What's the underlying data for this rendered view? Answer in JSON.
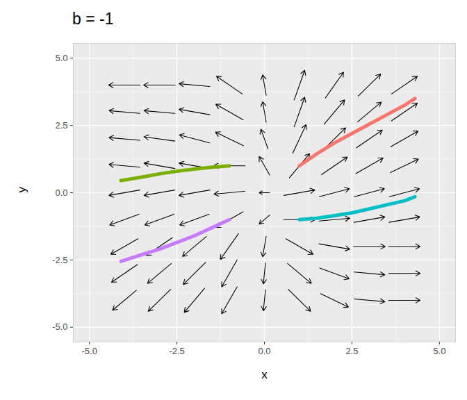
{
  "chart_data": {
    "type": "vector_field",
    "title": "b = -1",
    "x_label": "x",
    "y_label": "y",
    "xlim": [
      -5.46,
      5.46
    ],
    "ylim": [
      -5.55,
      5.55
    ],
    "xticks": [
      {
        "value": -5,
        "label": "-5.0"
      },
      {
        "value": -2.5,
        "label": "-2.5"
      },
      {
        "value": 0,
        "label": "0.0"
      },
      {
        "value": 2.5,
        "label": "2.5"
      },
      {
        "value": 5,
        "label": "5.0"
      }
    ],
    "yticks": [
      {
        "value": -5,
        "label": "-5.0"
      },
      {
        "value": -2.5,
        "label": "-2.5"
      },
      {
        "value": 0,
        "label": "0.0"
      },
      {
        "value": 2.5,
        "label": "2.5"
      },
      {
        "value": 5,
        "label": "5.0"
      }
    ],
    "grid": true,
    "arrows": [
      [
        -3.55,
        4,
        -4.45,
        4
      ],
      [
        -2.55,
        4,
        -3.45,
        4
      ],
      [
        -1.56,
        3.95,
        -2.44,
        4.05
      ],
      [
        -0.63,
        3.67,
        -1.37,
        4.33
      ],
      [
        0.05,
        3.62,
        -0.05,
        4.38
      ],
      [
        0.85,
        3.45,
        1.15,
        4.55
      ],
      [
        1.74,
        3.52,
        2.26,
        4.48
      ],
      [
        2.68,
        3.59,
        3.32,
        4.41
      ],
      [
        3.63,
        3.67,
        4.37,
        4.33
      ],
      [
        -3.56,
        2.95,
        -4.44,
        3.05
      ],
      [
        -2.56,
        2.95,
        -3.44,
        3.05
      ],
      [
        -1.56,
        2.9,
        -2.44,
        3.1
      ],
      [
        -0.61,
        2.71,
        -1.39,
        3.29
      ],
      [
        0.05,
        2.62,
        -0.05,
        3.38
      ],
      [
        0.85,
        2.45,
        1.15,
        3.55
      ],
      [
        1.71,
        2.55,
        2.29,
        3.45
      ],
      [
        2.66,
        2.63,
        3.34,
        3.37
      ],
      [
        3.63,
        2.67,
        4.37,
        3.33
      ],
      [
        -3.56,
        1.95,
        -4.44,
        2.05
      ],
      [
        -2.56,
        1.92,
        -3.44,
        2.08
      ],
      [
        -1.57,
        1.85,
        -2.43,
        2.15
      ],
      [
        -0.6,
        1.75,
        -1.4,
        2.25
      ],
      [
        0.1,
        1.64,
        -0.1,
        2.36
      ],
      [
        0.81,
        1.47,
        1.19,
        2.53
      ],
      [
        1.68,
        1.59,
        2.32,
        2.41
      ],
      [
        2.63,
        1.67,
        3.37,
        2.33
      ],
      [
        3.61,
        1.71,
        4.39,
        2.29
      ],
      [
        -3.56,
        0.95,
        -4.44,
        1.05
      ],
      [
        -2.56,
        0.9,
        -3.44,
        1.1
      ],
      [
        -1.56,
        0.9,
        -2.44,
        1.1
      ],
      [
        -0.55,
        1,
        -1.45,
        1
      ],
      [
        0.15,
        0.66,
        -0.15,
        1.34
      ],
      [
        0.71,
        0.55,
        1.29,
        1.45
      ],
      [
        1.63,
        0.67,
        2.37,
        1.33
      ],
      [
        2.61,
        0.71,
        3.39,
        1.29
      ],
      [
        3.6,
        0.75,
        4.4,
        1.25
      ],
      [
        -3.56,
        0.1,
        -4.44,
        -0.1
      ],
      [
        -2.56,
        0.1,
        -3.44,
        -0.1
      ],
      [
        -1.56,
        0.1,
        -2.44,
        -0.1
      ],
      [
        -0.56,
        0.05,
        -1.44,
        -0.05
      ],
      [
        0.15,
        0,
        -0.15,
        0
      ],
      [
        0.56,
        -0.1,
        1.44,
        0.1
      ],
      [
        1.57,
        -0.15,
        2.43,
        0.15
      ],
      [
        2.57,
        -0.15,
        3.43,
        0.15
      ],
      [
        3.57,
        -0.15,
        4.43,
        0.15
      ],
      [
        -3.58,
        -0.8,
        -4.42,
        -1.2
      ],
      [
        -2.58,
        -0.8,
        -3.42,
        -1.2
      ],
      [
        -1.58,
        -0.8,
        -2.42,
        -1.2
      ],
      [
        -0.61,
        -0.71,
        -1.39,
        -1.29
      ],
      [
        0.15,
        -0.83,
        -0.15,
        -1.17
      ],
      [
        0.55,
        -1,
        1.45,
        -1
      ],
      [
        1.56,
        -1.05,
        2.44,
        -0.95
      ],
      [
        2.56,
        -1.1,
        3.44,
        -0.9
      ],
      [
        3.56,
        -1.1,
        4.44,
        -0.9
      ],
      [
        -3.61,
        -1.71,
        -4.39,
        -2.29
      ],
      [
        -2.63,
        -1.67,
        -3.37,
        -2.33
      ],
      [
        -1.66,
        -1.63,
        -2.34,
        -2.37
      ],
      [
        -0.74,
        -1.52,
        -1.26,
        -2.48
      ],
      [
        0.05,
        -1.62,
        -0.05,
        -2.38
      ],
      [
        0.61,
        -1.71,
        1.39,
        -2.29
      ],
      [
        1.56,
        -1.9,
        2.44,
        -2.1
      ],
      [
        2.55,
        -2,
        3.45,
        -2
      ],
      [
        3.55,
        -2,
        4.45,
        -2
      ],
      [
        -3.63,
        -2.67,
        -4.37,
        -3.33
      ],
      [
        -2.66,
        -2.63,
        -3.34,
        -3.37
      ],
      [
        -1.68,
        -2.59,
        -2.32,
        -3.41
      ],
      [
        -0.78,
        -2.5,
        -1.22,
        -3.5
      ],
      [
        0.03,
        -2.61,
        -0.03,
        -3.39
      ],
      [
        0.66,
        -2.63,
        1.34,
        -3.37
      ],
      [
        1.58,
        -2.8,
        2.42,
        -3.2
      ],
      [
        2.56,
        -2.95,
        3.44,
        -3.05
      ],
      [
        3.55,
        -3,
        4.45,
        -3
      ],
      [
        -3.66,
        -3.63,
        -4.34,
        -4.37
      ],
      [
        -2.68,
        -3.59,
        -3.32,
        -4.41
      ],
      [
        -1.71,
        -3.55,
        -2.29,
        -4.45
      ],
      [
        -0.78,
        -3.5,
        -1.22,
        -4.5
      ],
      [
        0.03,
        -3.61,
        -0.03,
        -4.39
      ],
      [
        0.68,
        -3.59,
        1.32,
        -4.41
      ],
      [
        1.6,
        -3.75,
        2.4,
        -4.25
      ],
      [
        2.56,
        -3.95,
        3.44,
        -4.05
      ],
      [
        3.55,
        -4,
        4.45,
        -4
      ]
    ],
    "series": [
      {
        "color": "#F8766D",
        "x": [
          1,
          1.5,
          2,
          2.5,
          3,
          3.5,
          4,
          4.3
        ],
        "y": [
          1,
          1.45,
          1.85,
          2.2,
          2.55,
          2.9,
          3.25,
          3.5
        ]
      },
      {
        "color": "#7CAE00",
        "x": [
          -1,
          -1.5,
          -2,
          -2.5,
          -3,
          -3.5,
          -4.1
        ],
        "y": [
          1,
          0.95,
          0.88,
          0.8,
          0.7,
          0.58,
          0.45
        ]
      },
      {
        "color": "#00BFC4",
        "x": [
          1,
          1.5,
          2,
          2.5,
          3,
          3.5,
          4,
          4.3
        ],
        "y": [
          -1,
          -0.95,
          -0.85,
          -0.75,
          -0.6,
          -0.45,
          -0.3,
          -0.15
        ]
      },
      {
        "color": "#C77CFF",
        "x": [
          -1,
          -1.5,
          -2,
          -2.5,
          -3,
          -3.5,
          -4.1
        ],
        "y": [
          -1,
          -1.3,
          -1.6,
          -1.85,
          -2.1,
          -2.3,
          -2.55
        ]
      }
    ]
  }
}
